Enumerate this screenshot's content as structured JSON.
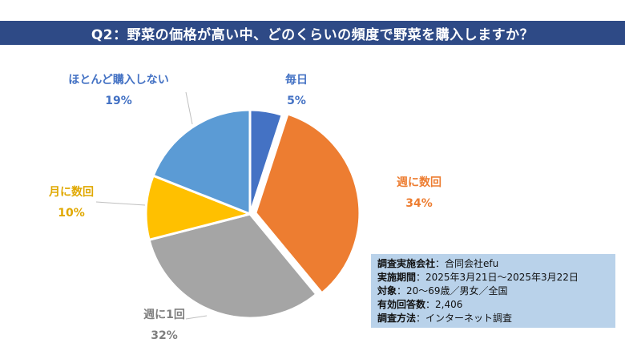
{
  "title": "Q2：野菜の価格が高い中、どのくらいの頻度で野菜を購入しますか？",
  "chart_data": {
    "type": "pie",
    "slices": [
      {
        "label": "毎日",
        "pct_label": "5%",
        "value": 5,
        "color": "#4472C4"
      },
      {
        "label": "週に数回",
        "pct_label": "34%",
        "value": 34,
        "color": "#ED7D31"
      },
      {
        "label": "週に1回",
        "pct_label": "32%",
        "value": 32,
        "color": "#A5A5A5"
      },
      {
        "label": "月に数回",
        "pct_label": "10%",
        "value": 10,
        "color": "#FFC000"
      },
      {
        "label": "ほとんど購入しない",
        "pct_label": "19%",
        "value": 19,
        "color": "#5B9BD5"
      }
    ],
    "label_colors": [
      "#4472C4",
      "#ED7D31",
      "#7F7F7F",
      "#E0A800",
      "#4472C4"
    ]
  },
  "info": [
    {
      "key": "調査実施会社",
      "value": "：合同会社efu"
    },
    {
      "key": "実施期間",
      "value": "：2025年3月21日～2025年3月22日"
    },
    {
      "key": "対象",
      "value": "：20～69歳／男女／全国"
    },
    {
      "key": "有効回答数",
      "value": "：2,406"
    },
    {
      "key": "調査方法",
      "value": "：インターネット調査"
    }
  ]
}
